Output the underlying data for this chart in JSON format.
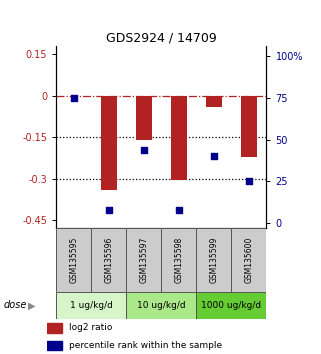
{
  "title": "GDS2924 / 14709",
  "samples": [
    "GSM135595",
    "GSM135596",
    "GSM135597",
    "GSM135598",
    "GSM135599",
    "GSM135600"
  ],
  "log2_ratio": [
    0.0,
    -0.34,
    -0.16,
    -0.305,
    -0.04,
    -0.22
  ],
  "percentile_rank": [
    75,
    8,
    44,
    8,
    40,
    25
  ],
  "dose_groups": [
    {
      "label": "1 ug/kg/d",
      "samples": [
        0,
        1
      ],
      "color": "#d6f5c8"
    },
    {
      "label": "10 ug/kg/d",
      "samples": [
        2,
        3
      ],
      "color": "#aae88a"
    },
    {
      "label": "1000 ug/kg/d",
      "samples": [
        4,
        5
      ],
      "color": "#66cc33"
    }
  ],
  "ylim_left": [
    -0.48,
    0.18
  ],
  "ylim_right": [
    -3.2,
    106.0
  ],
  "yticks_left": [
    0.15,
    0.0,
    -0.15,
    -0.3,
    -0.45
  ],
  "yticks_right": [
    100,
    75,
    50,
    25,
    0
  ],
  "bar_color": "#b22222",
  "dot_color": "#00008b",
  "dotted_lines": [
    -0.15,
    -0.3
  ],
  "sample_bg": "#cccccc",
  "dose_label_color": "#444444"
}
